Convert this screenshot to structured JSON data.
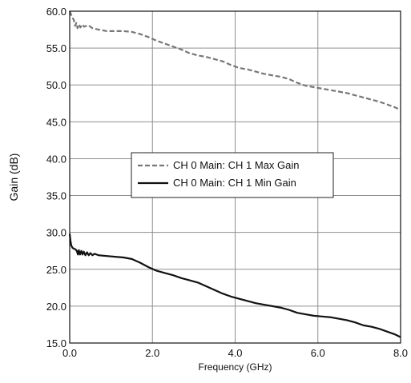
{
  "chart_data": {
    "type": "line",
    "xlabel": "Frequency (GHz)",
    "ylabel": "Gain (dB)",
    "xlim": [
      0.0,
      8.0
    ],
    "ylim": [
      15.0,
      60.0
    ],
    "x_ticks": [
      "0.0",
      "2.0",
      "4.0",
      "6.0",
      "8.0"
    ],
    "y_ticks": [
      "15.0",
      "20.0",
      "25.0",
      "30.0",
      "35.0",
      "40.0",
      "45.0",
      "50.0",
      "55.0",
      "60.0"
    ],
    "grid": true,
    "legend_position": "center-left",
    "series": [
      {
        "name": "CH 0 Main: CH 1 Max Gain",
        "style": "dashed",
        "color": "#777777",
        "points": [
          [
            0.0,
            60.0
          ],
          [
            0.03,
            59.6
          ],
          [
            0.06,
            59.2
          ],
          [
            0.1,
            58.8
          ],
          [
            0.13,
            58.0
          ],
          [
            0.16,
            58.4
          ],
          [
            0.19,
            57.7
          ],
          [
            0.22,
            58.2
          ],
          [
            0.26,
            57.8
          ],
          [
            0.3,
            58.2
          ],
          [
            0.35,
            57.9
          ],
          [
            0.45,
            58.1
          ],
          [
            0.55,
            57.7
          ],
          [
            0.7,
            57.5
          ],
          [
            0.9,
            57.3
          ],
          [
            1.1,
            57.3
          ],
          [
            1.3,
            57.3
          ],
          [
            1.5,
            57.2
          ],
          [
            1.7,
            56.9
          ],
          [
            1.9,
            56.5
          ],
          [
            2.1,
            56.0
          ],
          [
            2.3,
            55.6
          ],
          [
            2.5,
            55.2
          ],
          [
            2.7,
            54.8
          ],
          [
            2.9,
            54.3
          ],
          [
            3.1,
            54.0
          ],
          [
            3.3,
            53.8
          ],
          [
            3.5,
            53.5
          ],
          [
            3.7,
            53.2
          ],
          [
            3.9,
            52.7
          ],
          [
            4.1,
            52.3
          ],
          [
            4.3,
            52.1
          ],
          [
            4.5,
            51.8
          ],
          [
            4.7,
            51.5
          ],
          [
            4.9,
            51.3
          ],
          [
            5.1,
            51.1
          ],
          [
            5.3,
            50.8
          ],
          [
            5.5,
            50.3
          ],
          [
            5.7,
            49.9
          ],
          [
            5.9,
            49.7
          ],
          [
            6.1,
            49.5
          ],
          [
            6.3,
            49.3
          ],
          [
            6.5,
            49.1
          ],
          [
            6.7,
            48.9
          ],
          [
            6.9,
            48.6
          ],
          [
            7.1,
            48.3
          ],
          [
            7.3,
            48.0
          ],
          [
            7.5,
            47.7
          ],
          [
            7.7,
            47.3
          ],
          [
            7.85,
            47.0
          ],
          [
            8.0,
            46.6
          ]
        ]
      },
      {
        "name": "CH 0 Main: CH 1 Min Gain",
        "style": "solid",
        "color": "#111111",
        "points": [
          [
            0.0,
            29.8
          ],
          [
            0.02,
            28.8
          ],
          [
            0.04,
            28.2
          ],
          [
            0.07,
            27.9
          ],
          [
            0.1,
            27.8
          ],
          [
            0.14,
            27.7
          ],
          [
            0.17,
            27.5
          ],
          [
            0.2,
            27.0
          ],
          [
            0.22,
            27.6
          ],
          [
            0.25,
            27.0
          ],
          [
            0.28,
            27.5
          ],
          [
            0.31,
            27.0
          ],
          [
            0.34,
            27.4
          ],
          [
            0.38,
            26.9
          ],
          [
            0.42,
            27.3
          ],
          [
            0.46,
            26.9
          ],
          [
            0.5,
            27.2
          ],
          [
            0.55,
            26.9
          ],
          [
            0.6,
            27.1
          ],
          [
            0.7,
            26.9
          ],
          [
            0.9,
            26.8
          ],
          [
            1.1,
            26.7
          ],
          [
            1.3,
            26.6
          ],
          [
            1.5,
            26.4
          ],
          [
            1.7,
            25.9
          ],
          [
            1.9,
            25.3
          ],
          [
            2.1,
            24.8
          ],
          [
            2.3,
            24.5
          ],
          [
            2.5,
            24.2
          ],
          [
            2.7,
            23.8
          ],
          [
            2.9,
            23.5
          ],
          [
            3.1,
            23.2
          ],
          [
            3.3,
            22.7
          ],
          [
            3.5,
            22.2
          ],
          [
            3.7,
            21.7
          ],
          [
            3.9,
            21.3
          ],
          [
            4.1,
            21.0
          ],
          [
            4.3,
            20.7
          ],
          [
            4.5,
            20.4
          ],
          [
            4.7,
            20.2
          ],
          [
            4.9,
            20.0
          ],
          [
            5.1,
            19.8
          ],
          [
            5.3,
            19.5
          ],
          [
            5.5,
            19.1
          ],
          [
            5.7,
            18.9
          ],
          [
            5.9,
            18.7
          ],
          [
            6.1,
            18.6
          ],
          [
            6.3,
            18.5
          ],
          [
            6.5,
            18.3
          ],
          [
            6.7,
            18.1
          ],
          [
            6.9,
            17.8
          ],
          [
            7.1,
            17.4
          ],
          [
            7.3,
            17.2
          ],
          [
            7.5,
            16.9
          ],
          [
            7.7,
            16.5
          ],
          [
            7.85,
            16.2
          ],
          [
            8.0,
            15.8
          ]
        ]
      }
    ]
  }
}
